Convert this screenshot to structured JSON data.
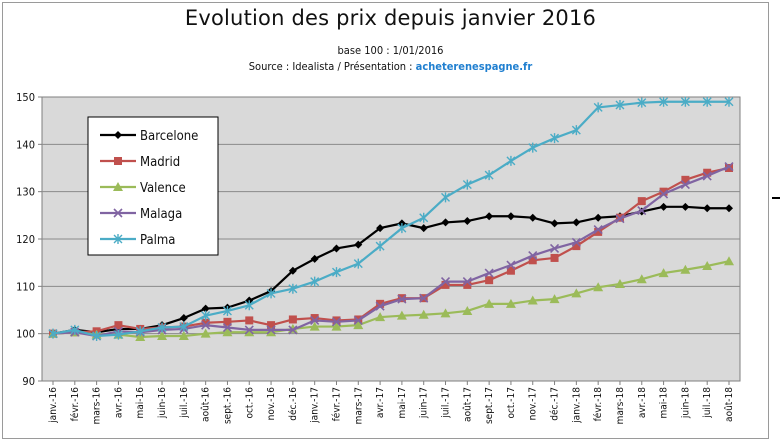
{
  "chart_data": {
    "type": "line",
    "title": "Evolution des prix depuis janvier 2016",
    "subtitle": "base 100 : 1/01/2016",
    "source_prefix": "Source : Idealista / Présentation : ",
    "source_link": "acheterenespagne.fr",
    "xlabel": "",
    "ylabel": "",
    "ylim": [
      90,
      150
    ],
    "yticks": [
      90,
      100,
      110,
      120,
      130,
      140,
      150
    ],
    "grid": true,
    "legend_position": "top-left",
    "plot_background": "#d9d9d9",
    "categories": [
      "janv.-16",
      "févr.-16",
      "mars-16",
      "avr.-16",
      "mai-16",
      "juin-16",
      "juil.-16",
      "août-16",
      "sept.-16",
      "oct.-16",
      "nov.-16",
      "déc.-16",
      "janv.-17",
      "févr.-17",
      "mars-17",
      "avr.-17",
      "mai-17",
      "juin-17",
      "juil.-17",
      "août-17",
      "sept.-17",
      "oct.-17",
      "nov.-17",
      "déc.-17",
      "janv.-18",
      "févr.-18",
      "mars-18",
      "avr.-18",
      "mai-18",
      "juin-18",
      "juil.-18",
      "août-18"
    ],
    "series": [
      {
        "name": "Barcelone",
        "color": "#000000",
        "marker": "diamond",
        "values": [
          100,
          100.8,
          100.3,
          101.0,
          101.0,
          101.8,
          103.3,
          105.3,
          105.5,
          107.0,
          109.0,
          113.3,
          115.8,
          118.0,
          118.8,
          122.3,
          123.3,
          122.3,
          123.5,
          123.8,
          124.8,
          124.8,
          124.5,
          123.3,
          123.5,
          124.5,
          124.8,
          125.8,
          126.8,
          126.8,
          126.5,
          126.5
        ]
      },
      {
        "name": "Madrid",
        "color": "#c0504d",
        "marker": "square",
        "values": [
          100,
          100.3,
          100.5,
          101.8,
          101.0,
          101.3,
          101.5,
          102.3,
          102.5,
          102.8,
          101.8,
          103.0,
          103.3,
          102.8,
          103.0,
          106.3,
          107.5,
          107.5,
          110.3,
          110.3,
          111.3,
          113.3,
          115.5,
          116.0,
          118.5,
          121.5,
          124.5,
          128.0,
          130.0,
          132.5,
          134.0,
          135.0
        ]
      },
      {
        "name": "Valence",
        "color": "#9bbb59",
        "marker": "triangle",
        "values": [
          100,
          100.3,
          99.8,
          99.8,
          99.3,
          99.5,
          99.5,
          100.0,
          100.3,
          100.3,
          100.3,
          101.0,
          101.5,
          101.5,
          101.8,
          103.5,
          103.8,
          104.0,
          104.3,
          104.8,
          106.3,
          106.3,
          107.0,
          107.3,
          108.5,
          109.8,
          110.5,
          111.5,
          112.8,
          113.5,
          114.3,
          115.3
        ]
      },
      {
        "name": "Malaga",
        "color": "#8064a2",
        "marker": "x",
        "values": [
          100,
          100.3,
          99.5,
          100.5,
          100.3,
          100.8,
          101.0,
          101.8,
          101.3,
          100.8,
          100.8,
          100.8,
          102.8,
          102.5,
          102.8,
          105.8,
          107.3,
          107.5,
          111.0,
          111.0,
          112.8,
          114.5,
          116.5,
          118.0,
          119.3,
          122.0,
          124.3,
          126.0,
          129.5,
          131.5,
          133.3,
          135.3
        ]
      },
      {
        "name": "Palma",
        "color": "#4bacc6",
        "marker": "asterisk",
        "values": [
          100,
          100.8,
          99.5,
          99.8,
          100.5,
          101.3,
          101.5,
          103.8,
          104.8,
          106.0,
          108.5,
          109.5,
          111.0,
          113.0,
          114.8,
          118.5,
          122.3,
          124.5,
          128.8,
          131.5,
          133.5,
          136.5,
          139.3,
          141.3,
          143.0,
          147.8,
          148.3,
          148.8,
          149.0,
          149.0,
          149.0,
          149.0
        ]
      }
    ]
  }
}
